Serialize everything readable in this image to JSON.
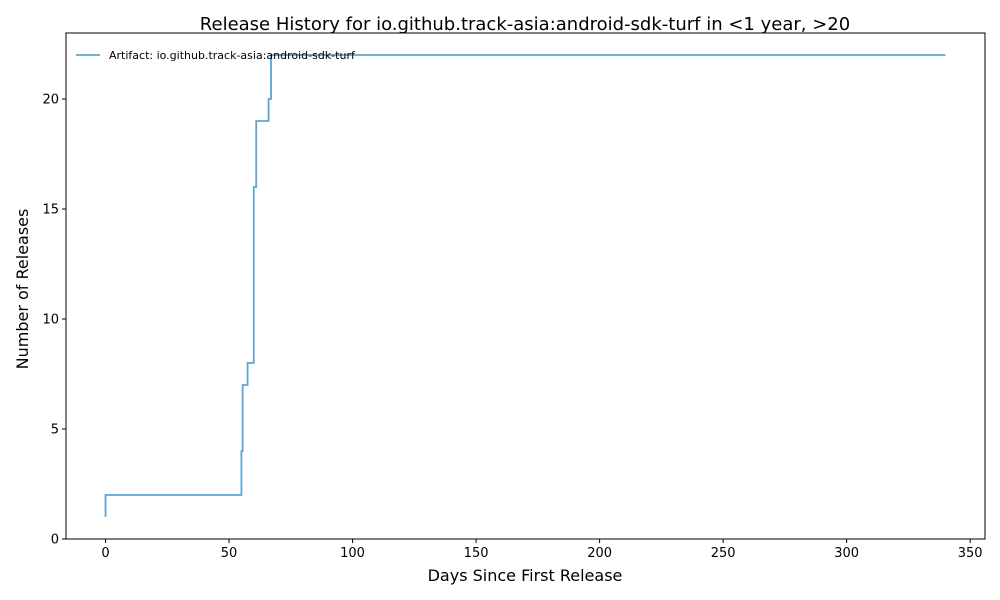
{
  "chart_data": {
    "type": "line",
    "step": true,
    "title": "Release History for io.github.track-asia:android-sdk-turf in <1 year, >20",
    "xlabel": "Days Since First Release",
    "ylabel": "Number of Releases",
    "xlim": [
      -16,
      356
    ],
    "ylim": [
      0,
      23
    ],
    "xticks": [
      0,
      50,
      100,
      150,
      200,
      250,
      300,
      350
    ],
    "yticks": [
      0,
      5,
      10,
      15,
      20
    ],
    "grid": false,
    "legend_position": "top-left",
    "series": [
      {
        "name": "Artifact: io.github.track-asia:android-sdk-turf",
        "color": "#5ea5d2",
        "x": [
          0,
          0,
          55,
          55.5,
          56,
          57.5,
          60,
          61,
          66,
          67,
          340
        ],
        "y": [
          1,
          2,
          4,
          7,
          7,
          8,
          16,
          19,
          20,
          22,
          22
        ]
      }
    ]
  }
}
